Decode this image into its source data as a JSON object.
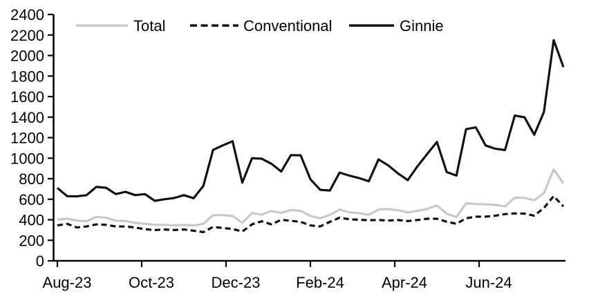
{
  "chart_data": {
    "type": "line",
    "title": "",
    "xlabel": "",
    "ylabel": "",
    "ylim": [
      0,
      2400
    ],
    "y_tick_step": 200,
    "y_tick_labels": [
      "0",
      "200",
      "400",
      "600",
      "800",
      "1000",
      "1200",
      "1400",
      "1600",
      "1800",
      "2000",
      "2200",
      "2400"
    ],
    "x_tick_labels": [
      "Aug-23",
      "Oct-23",
      "Dec-23",
      "Feb-24",
      "Apr-24",
      "Jun-24"
    ],
    "x_axis_note": "weekly observations, Aug-2023 through early Aug-2024",
    "grid": "off",
    "legend_position": "top",
    "axis_color": "#000000",
    "series": [
      {
        "name": "Total",
        "color": "#c8c8c8",
        "dash": "",
        "values": [
          403,
          410,
          392,
          385,
          428,
          420,
          392,
          388,
          370,
          360,
          350,
          350,
          345,
          350,
          345,
          360,
          445,
          445,
          437,
          370,
          465,
          450,
          485,
          468,
          495,
          487,
          437,
          414,
          448,
          500,
          471,
          465,
          448,
          500,
          505,
          493,
          471,
          487,
          505,
          539,
          460,
          426,
          560,
          554,
          550,
          545,
          530,
          615,
          613,
          590,
          660,
          890,
          755
        ]
      },
      {
        "name": "Conventional",
        "color": "#111111",
        "dash": "8 5",
        "values": [
          345,
          360,
          325,
          335,
          355,
          350,
          335,
          335,
          325,
          308,
          300,
          305,
          300,
          305,
          293,
          280,
          330,
          320,
          310,
          285,
          355,
          385,
          355,
          400,
          390,
          380,
          345,
          335,
          380,
          420,
          405,
          400,
          395,
          398,
          392,
          397,
          387,
          397,
          410,
          410,
          381,
          360,
          415,
          430,
          430,
          440,
          455,
          462,
          460,
          440,
          515,
          630,
          530
        ]
      },
      {
        "name": "Ginnie",
        "color": "#111111",
        "dash": "",
        "values": [
          710,
          630,
          628,
          640,
          720,
          712,
          650,
          672,
          640,
          650,
          585,
          600,
          612,
          640,
          610,
          730,
          1080,
          1125,
          1165,
          762,
          1000,
          995,
          945,
          870,
          1030,
          1028,
          795,
          692,
          685,
          860,
          830,
          806,
          775,
          988,
          930,
          852,
          786,
          920,
          1040,
          1158,
          865,
          830,
          1283,
          1300,
          1124,
          1092,
          1079,
          1415,
          1398,
          1228,
          1450,
          2150,
          1888
        ]
      }
    ],
    "legend": [
      "Total",
      "Conventional",
      "Ginnie"
    ]
  }
}
